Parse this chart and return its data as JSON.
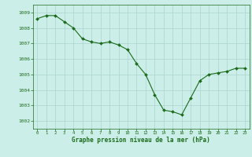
{
  "x": [
    0,
    1,
    2,
    3,
    4,
    5,
    6,
    7,
    8,
    9,
    10,
    11,
    12,
    13,
    14,
    15,
    16,
    17,
    18,
    19,
    20,
    21,
    22,
    23
  ],
  "y": [
    1008.6,
    1008.8,
    1008.8,
    1008.4,
    1008.0,
    1007.3,
    1007.1,
    1007.0,
    1007.1,
    1006.9,
    1006.6,
    1005.7,
    1005.0,
    1003.7,
    1002.7,
    1002.6,
    1002.4,
    1003.5,
    1004.6,
    1005.0,
    1005.1,
    1005.2,
    1005.4,
    1005.4
  ],
  "line_color": "#1a6b1a",
  "marker_color": "#1a6b1a",
  "bg_color": "#cceee8",
  "grid_color": "#aad4ce",
  "xlabel": "Graphe pression niveau de la mer (hPa)",
  "xlabel_color": "#1a6b1a",
  "tick_color": "#1a6b1a",
  "ylim_min": 1001.5,
  "ylim_max": 1009.5,
  "yticks": [
    1002,
    1003,
    1004,
    1005,
    1006,
    1007,
    1008,
    1009
  ],
  "xticks": [
    0,
    1,
    2,
    3,
    4,
    5,
    6,
    7,
    8,
    9,
    10,
    11,
    12,
    13,
    14,
    15,
    16,
    17,
    18,
    19,
    20,
    21,
    22,
    23
  ]
}
